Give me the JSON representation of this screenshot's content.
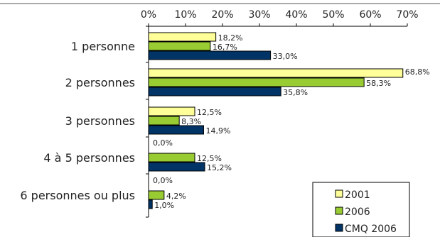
{
  "chart_data": {
    "type": "bar",
    "orientation": "horizontal",
    "title": "",
    "xlabel": "",
    "ylabel": "",
    "xlim": [
      0,
      70
    ],
    "x_ticks": [
      "0%",
      "10%",
      "20%",
      "30%",
      "40%",
      "50%",
      "60%",
      "70%"
    ],
    "grid": false,
    "legend_position": "bottom-right",
    "categories": [
      "1 personne",
      "2 personnes",
      "3 personnes",
      "4 à 5 personnes",
      "6 personnes ou plus"
    ],
    "series": [
      {
        "name": "2001",
        "color": "#ffff99",
        "values": [
          18.2,
          68.8,
          12.5,
          0.0,
          0.0
        ],
        "labels": [
          "18,2%",
          "68,8%",
          "12,5%",
          "0,0%",
          "0,0%"
        ]
      },
      {
        "name": "2006",
        "color": "#99cc33",
        "values": [
          16.7,
          58.3,
          8.3,
          12.5,
          4.2
        ],
        "labels": [
          "16,7%",
          "58,3%",
          "8,3%",
          "12,5%",
          "4,2%"
        ]
      },
      {
        "name": "CMQ 2006",
        "color": "#003366",
        "values": [
          33.0,
          35.8,
          14.9,
          15.2,
          1.0
        ],
        "labels": [
          "33,0%",
          "35,8%",
          "14,9%",
          "15,2%",
          "1,0%"
        ]
      }
    ]
  }
}
